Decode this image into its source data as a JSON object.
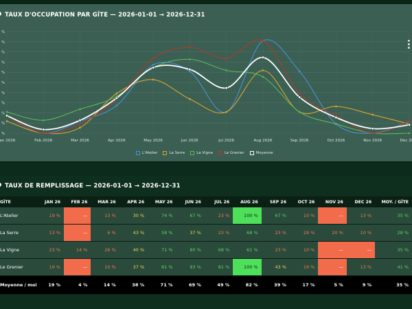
{
  "chart_panel": {
    "title": "TAUX D'OCCUPATION PAR GÎTE — 2026-01-01 → 2026-12-31"
  },
  "chart_data": {
    "type": "line",
    "title": "TAUX D'OCCUPATION PAR GÎTE — 2026-01-01 → 2026-12-31",
    "categories": [
      "Jan 2026",
      "Feb 2026",
      "Mar 2026",
      "Apr 2026",
      "May 2026",
      "Jun 2026",
      "Jul 2026",
      "Aug 2026",
      "Sep 2026",
      "Oct 2026",
      "Nov 2026",
      "Dec 2026"
    ],
    "y_tick_labels": [
      "%",
      "%",
      "%",
      "%",
      "%",
      "%",
      "%",
      "%",
      "%",
      "%",
      "%"
    ],
    "ylim": [
      0,
      110
    ],
    "grid": true,
    "legend_position": "bottom",
    "series": [
      {
        "name": "L'Atelier",
        "color": "#4a90d9",
        "values": [
          19,
          0,
          13,
          30,
          74,
          67,
          23,
          100,
          67,
          10,
          0,
          13
        ]
      },
      {
        "name": "La Serre",
        "color": "#d9a630",
        "values": [
          13,
          0,
          6,
          43,
          58,
          37,
          23,
          68,
          23,
          29,
          20,
          10
        ]
      },
      {
        "name": "La Vigne",
        "color": "#5cb85c",
        "values": [
          23,
          14,
          26,
          40,
          71,
          80,
          68,
          61,
          23,
          10,
          0,
          0
        ]
      },
      {
        "name": "Le Grenier",
        "color": "#b03a2e",
        "values": [
          19,
          0,
          10,
          37,
          81,
          93,
          81,
          100,
          43,
          19,
          0,
          13
        ]
      },
      {
        "name": "Moyenne",
        "color": "#ffffff",
        "values": [
          19,
          4,
          14,
          38,
          71,
          69,
          49,
          82,
          39,
          17,
          5,
          9
        ]
      }
    ]
  },
  "table_panel": {
    "title": "TAUX DE REMPLISSAGE — 2026-01-01 → 2026-12-31",
    "headers": [
      "GÎTE",
      "JAN 26",
      "FEB 26",
      "MAR 26",
      "APR 26",
      "MAY 26",
      "JUN 26",
      "JUL 26",
      "AUG 26",
      "SEP 26",
      "OCT 26",
      "NOV 26",
      "DEC 26",
      "MOY. / GÎTE"
    ],
    "rows": [
      {
        "label": "L'Atelier",
        "cells": [
          "19 %",
          "—",
          "13 %",
          "30 %",
          "74 %",
          "67 %",
          "23 %",
          "100 %",
          "67 %",
          "10 %",
          "—",
          "13 %",
          "35 %"
        ]
      },
      {
        "label": "La Serre",
        "cells": [
          "13 %",
          "—",
          "6 %",
          "43 %",
          "58 %",
          "37 %",
          "23 %",
          "68 %",
          "23 %",
          "29 %",
          "20 %",
          "10 %",
          "28 %"
        ]
      },
      {
        "label": "La Vigne",
        "cells": [
          "23 %",
          "14 %",
          "26 %",
          "40 %",
          "71 %",
          "80 %",
          "68 %",
          "61 %",
          "23 %",
          "10 %",
          "—",
          "—",
          "35 %"
        ]
      },
      {
        "label": "Le Grenier",
        "cells": [
          "19 %",
          "—",
          "10 %",
          "37 %",
          "81 %",
          "93 %",
          "81 %",
          "100 %",
          "43 %",
          "19 %",
          "—",
          "13 %",
          "41 %"
        ]
      }
    ],
    "average_row": {
      "label": "Moyenne / mois",
      "cells": [
        "19 %",
        "4 %",
        "14 %",
        "38 %",
        "71 %",
        "69 %",
        "49 %",
        "82 %",
        "39 %",
        "17 %",
        "5 %",
        "9 %",
        "35 %"
      ]
    }
  }
}
